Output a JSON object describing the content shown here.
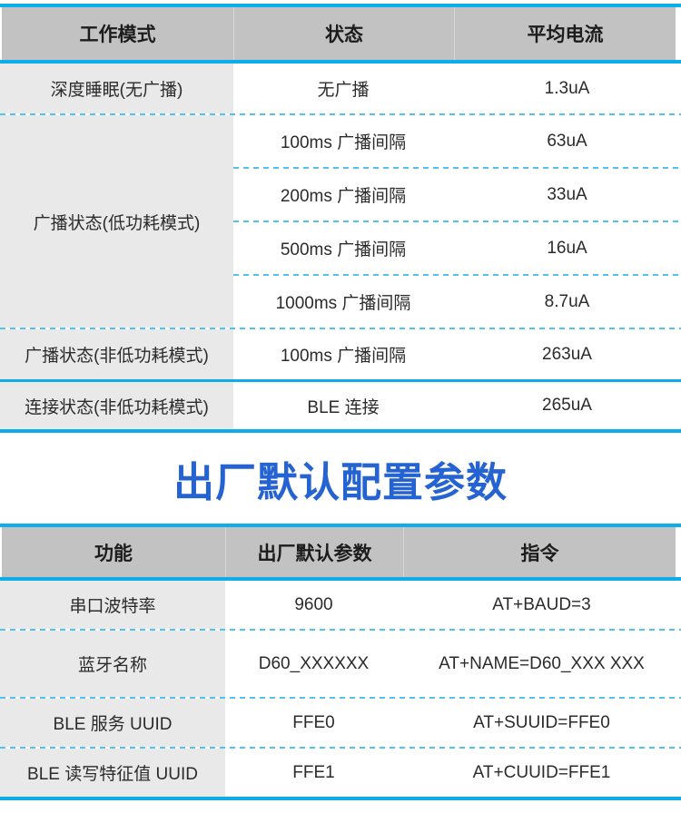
{
  "colors": {
    "solid_divider": "#0cade9",
    "dashed_divider": "#52c1ee",
    "header_bar": "#c2c2c2",
    "first_column": "#e9e9e9",
    "title_blue": "#2563d2"
  },
  "power_table": {
    "headers": [
      "工作模式",
      "状态",
      "平均电流"
    ],
    "rows": [
      {
        "mode": "深度睡眠(无广播)",
        "entries": [
          {
            "status": "无广播",
            "current": "1.3uA"
          }
        ]
      },
      {
        "mode": "广播状态(低功耗模式)",
        "entries": [
          {
            "status": "100ms 广播间隔",
            "current": "63uA"
          },
          {
            "status": "200ms 广播间隔",
            "current": "33uA"
          },
          {
            "status": "500ms 广播间隔",
            "current": "16uA"
          },
          {
            "status": "1000ms 广播间隔",
            "current": "8.7uA"
          }
        ]
      },
      {
        "mode": "广播状态(非低功耗模式)",
        "entries": [
          {
            "status": "100ms 广播间隔",
            "current": "263uA"
          }
        ]
      },
      {
        "mode": "连接状态(非低功耗模式)",
        "entries": [
          {
            "status": "BLE 连接",
            "current": "265uA"
          }
        ]
      }
    ]
  },
  "section_title": "出厂默认配置参数",
  "config_table": {
    "headers": [
      "功能",
      "出厂默认参数",
      "指令"
    ],
    "rows": [
      [
        "串口波特率",
        "9600",
        "AT+BAUD=3"
      ],
      [
        "蓝牙名称",
        "D60_XXXXXX",
        "AT+NAME=D60_XXX XXX"
      ],
      [
        "BLE 服务 UUID",
        "FFE0",
        "AT+SUUID=FFE0"
      ],
      [
        "BLE 读写特征值 UUID",
        "FFE1",
        "AT+CUUID=FFE1"
      ]
    ]
  }
}
